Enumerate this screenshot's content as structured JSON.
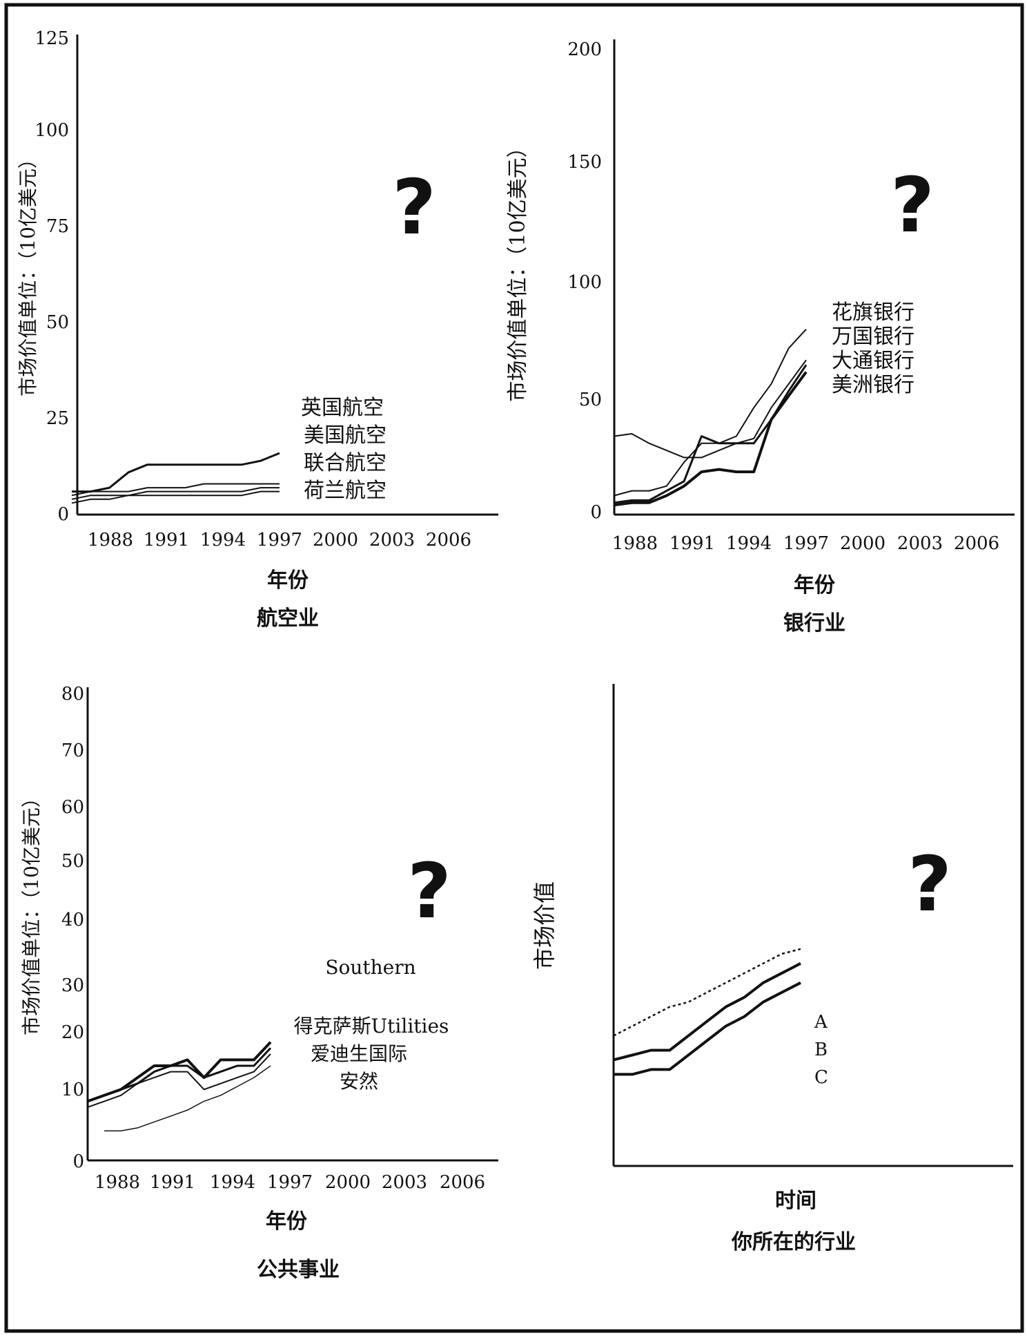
{
  "chart_data": [
    {
      "type": "line",
      "title": "航空业",
      "xlabel": "年份",
      "ylabel": "市场价值单位：（10亿美元）",
      "xlim": [
        1986,
        2008
      ],
      "ylim": [
        0,
        125
      ],
      "xticks": [
        1988,
        1991,
        1994,
        1997,
        2000,
        2003,
        2006
      ],
      "yticks": [
        0,
        25,
        50,
        75,
        100,
        125
      ],
      "legend": [
        "英国航空",
        "美国航空",
        "联合航空",
        "荷兰航空"
      ],
      "annotation": "?",
      "series": [
        {
          "name": "英国航空",
          "x": [
            1986,
            1987,
            1988,
            1989,
            1990,
            1991,
            1992,
            1993,
            1994,
            1995,
            1996,
            1997
          ],
          "y": [
            6,
            6,
            7,
            11,
            13,
            13,
            13,
            13,
            13,
            13,
            14,
            16
          ]
        },
        {
          "name": "美国航空",
          "x": [
            1986,
            1987,
            1988,
            1989,
            1990,
            1991,
            1992,
            1993,
            1994,
            1995,
            1996,
            1997
          ],
          "y": [
            5,
            6,
            6,
            6,
            7,
            7,
            7,
            8,
            8,
            8,
            8,
            8
          ]
        },
        {
          "name": "联合航空",
          "x": [
            1986,
            1987,
            1988,
            1989,
            1990,
            1991,
            1992,
            1993,
            1994,
            1995,
            1996,
            1997
          ],
          "y": [
            4,
            5,
            5,
            5,
            6,
            6,
            6,
            6,
            6,
            6,
            7,
            7
          ]
        },
        {
          "name": "荷兰航空",
          "x": [
            1986,
            1987,
            1988,
            1989,
            1990,
            1991,
            1992,
            1993,
            1994,
            1995,
            1996,
            1997
          ],
          "y": [
            3,
            4,
            4,
            5,
            5,
            5,
            5,
            5,
            5,
            5,
            6,
            6
          ]
        }
      ]
    },
    {
      "type": "line",
      "title": "银行业",
      "xlabel": "年份",
      "ylabel": "市场价值单位：（10亿美元）",
      "xlim": [
        1986,
        2008
      ],
      "ylim": [
        0,
        200
      ],
      "xticks": [
        1988,
        1991,
        1994,
        1997,
        2000,
        2003,
        2006
      ],
      "yticks": [
        0,
        50,
        100,
        150,
        200
      ],
      "legend": [
        "花旗银行",
        "万国银行",
        "大通银行",
        "美洲银行"
      ],
      "annotation": "?",
      "series": [
        {
          "name": "花旗银行",
          "x": [
            1986,
            1987,
            1988,
            1989,
            1990,
            1991,
            1992,
            1993,
            1994,
            1995,
            1996,
            1997
          ],
          "y": [
            8,
            10,
            10,
            12,
            22,
            30,
            30,
            33,
            45,
            55,
            70,
            78
          ]
        },
        {
          "name": "万国银行",
          "x": [
            1986,
            1987,
            1988,
            1989,
            1990,
            1991,
            1992,
            1993,
            1994,
            1995,
            1996,
            1997
          ],
          "y": [
            33,
            34,
            30,
            27,
            24,
            24,
            27,
            30,
            32,
            45,
            55,
            65
          ]
        },
        {
          "name": "大通银行",
          "x": [
            1986,
            1987,
            1988,
            1989,
            1990,
            1991,
            1992,
            1993,
            1994,
            1995,
            1996,
            1997
          ],
          "y": [
            5,
            6,
            6,
            10,
            14,
            33,
            30,
            30,
            30,
            40,
            52,
            63
          ]
        },
        {
          "name": "美洲银行",
          "x": [
            1986,
            1987,
            1988,
            1989,
            1990,
            1991,
            1992,
            1993,
            1994,
            1995,
            1996,
            1997
          ],
          "y": [
            4,
            5,
            5,
            8,
            12,
            18,
            19,
            18,
            18,
            40,
            50,
            60
          ]
        }
      ]
    },
    {
      "type": "line",
      "title": "公共事业",
      "xlabel": "年份",
      "ylabel": "市场价值单位：（10亿美元）",
      "xlim": [
        1986,
        2008
      ],
      "ylim": [
        0,
        80
      ],
      "xticks": [
        1988,
        1991,
        1994,
        1997,
        2000,
        2003,
        2006
      ],
      "yticks": [
        0,
        10,
        20,
        30,
        40,
        50,
        60,
        70,
        80
      ],
      "legend": [
        "Southern",
        "得克萨斯Utilities",
        "爱迪生国际",
        "安然"
      ],
      "annotation": "?",
      "series": [
        {
          "name": "Southern",
          "x": [
            1986,
            1987,
            1988,
            1989,
            1990,
            1991,
            1992,
            1993,
            1994,
            1995,
            1996,
            1997
          ],
          "y": [
            10,
            11,
            12,
            14,
            16,
            16,
            17,
            14,
            17,
            17,
            17,
            20
          ]
        },
        {
          "name": "得克萨斯Utilities",
          "x": [
            1986,
            1987,
            1988,
            1989,
            1990,
            1991,
            1992,
            1993,
            1994,
            1995,
            1996,
            1997
          ],
          "y": [
            10,
            11,
            12,
            13,
            15,
            16,
            16,
            14,
            15,
            16,
            16,
            19
          ]
        },
        {
          "name": "爱迪生国际",
          "x": [
            1986,
            1987,
            1988,
            1989,
            1990,
            1991,
            1992,
            1993,
            1994,
            1995,
            1996,
            1997
          ],
          "y": [
            9,
            10,
            11,
            13,
            14,
            15,
            15,
            12,
            13,
            14,
            15,
            18
          ]
        },
        {
          "name": "安然",
          "x": [
            1987,
            1988,
            1989,
            1990,
            1991,
            1992,
            1993,
            1994,
            1995,
            1996,
            1997
          ],
          "y": [
            5,
            5,
            5.5,
            6.5,
            7.5,
            8.5,
            10,
            11,
            12.5,
            14,
            16
          ]
        }
      ]
    },
    {
      "type": "line",
      "title": "你所在的行业",
      "xlabel": "时间",
      "ylabel": "市场价值",
      "xlim": [
        0,
        1
      ],
      "ylim": [
        0,
        1
      ],
      "xticks": [],
      "yticks": [],
      "legend": [
        "A",
        "B",
        "C"
      ],
      "annotation": "?",
      "series": [
        {
          "name": "A",
          "x": [
            0,
            0.1,
            0.2,
            0.3,
            0.4,
            0.5,
            0.6,
            0.7,
            0.8,
            0.9,
            1.0
          ],
          "y": [
            0.27,
            0.29,
            0.31,
            0.33,
            0.34,
            0.36,
            0.38,
            0.4,
            0.42,
            0.44,
            0.45
          ]
        },
        {
          "name": "B",
          "x": [
            0,
            0.1,
            0.2,
            0.3,
            0.4,
            0.5,
            0.6,
            0.7,
            0.8,
            0.9,
            1.0
          ],
          "y": [
            0.22,
            0.23,
            0.24,
            0.24,
            0.27,
            0.3,
            0.33,
            0.35,
            0.38,
            0.4,
            0.42
          ]
        },
        {
          "name": "C",
          "x": [
            0,
            0.1,
            0.2,
            0.3,
            0.4,
            0.5,
            0.6,
            0.7,
            0.8,
            0.9,
            1.0
          ],
          "y": [
            0.19,
            0.19,
            0.2,
            0.2,
            0.23,
            0.26,
            0.29,
            0.31,
            0.34,
            0.36,
            0.38
          ]
        }
      ]
    }
  ]
}
